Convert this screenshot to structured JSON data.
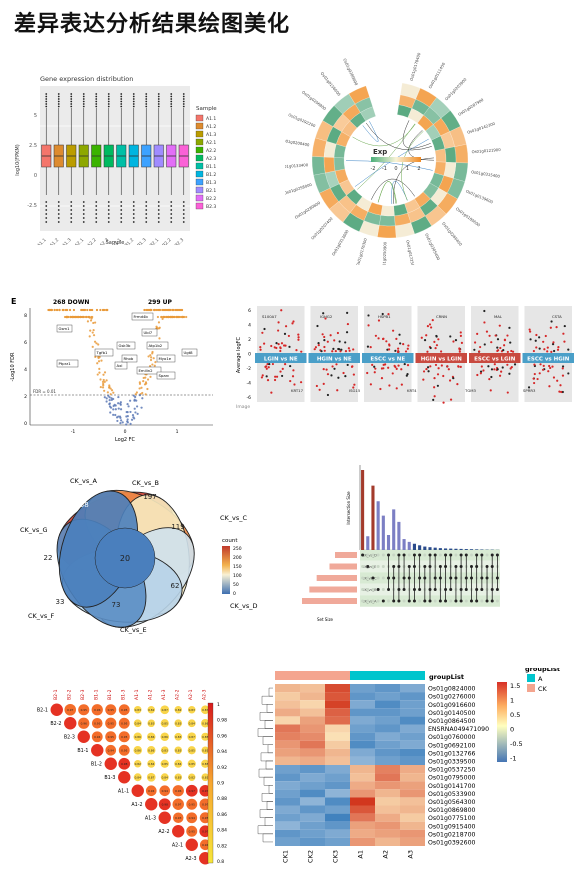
{
  "page": {
    "title": "差异表达分析结果绘图美化"
  },
  "boxplot": {
    "title": "Gene expression distribution",
    "xlabel": "Sample",
    "ylabel": "log10(FPKM)",
    "legend_title": "Sample",
    "samples": [
      "A1.1",
      "A1.2",
      "A1.3",
      "A2.1",
      "A2.2",
      "A2.3",
      "B1.1",
      "B1.2",
      "B1.3",
      "B2.1",
      "B2.2",
      "B2.3"
    ],
    "colors": [
      "#f4756b",
      "#dd8b2f",
      "#bb9c00",
      "#8da800",
      "#3bb300",
      "#00ba60",
      "#00bfa6",
      "#00b5e0",
      "#3da2ff",
      "#a08cff",
      "#e26ef7",
      "#fb61d7"
    ],
    "yticks": [
      "5",
      "2.5",
      "0",
      "-2.5"
    ]
  },
  "circos": {
    "legend_title": "Exp",
    "legend_ticks": [
      "-2",
      "-1",
      "0",
      "1",
      "2"
    ],
    "genes_right": [
      "Os01g0178400",
      "Os01g0111450",
      "Os01g0203900",
      "Os01g0287900",
      "Os01g0142300",
      "Os01g0121900",
      "Os01g0315400",
      "Os01g0139600",
      "Os01g0180500",
      "Os01g0266400",
      "Os01g0305400",
      "Os01g0172500"
    ],
    "genes_left": [
      "Os01g0250900",
      "Os01g0176300",
      "Os01g0313600",
      "Os01g0207400",
      "Os01g0280600",
      "Os01g0258000",
      "Os01g0133400",
      "Os01g0200400",
      "Os01g0292200",
      "Os01g0206800",
      "Os01g0156600",
      "Os01g0200600"
    ]
  },
  "volcano": {
    "panel_label": "E",
    "down_label": "268 DOWN",
    "up_label": "299 UP",
    "fdr_label": "FDR = 0.01",
    "xlabel": "Log2 FC",
    "ylabel": "-Log10 FDR",
    "xticks": [
      "-1",
      "0",
      "1"
    ],
    "yticks": [
      "0",
      "2",
      "4",
      "6",
      "8"
    ],
    "gene_labels": [
      "Gsm1",
      "Ptprz1",
      "Tgfb1",
      "Frmd4b",
      "Ubl7",
      "Gsk3b",
      "Atp1b2",
      "Axl",
      "Rhob",
      "Myo1e",
      "Emilin2",
      "Sparc",
      "Ugt8"
    ]
  },
  "multivolcano": {
    "ylabel": "Average logFC",
    "caption": "Image",
    "yticks": [
      "6",
      "4",
      "2",
      "0",
      "-2",
      "-4",
      "-6"
    ],
    "groups": [
      "LGIN vs NE",
      "HGIN vs NE",
      "ESCC vs NE",
      "HGIN vs LGIN",
      "ESCC vs LGIN",
      "ESCC vs HGIN"
    ],
    "group_colors": [
      "#4a9fc8",
      "#4a9fc8",
      "#4a9fc8",
      "#c84a40",
      "#c84a40",
      "#4a9fc8"
    ],
    "labels": [
      "S100A7",
      "KRT17",
      "IGHG2",
      "ISG15",
      "HSPB1",
      "KRT4",
      "CRNN",
      "TGM3",
      "MAL",
      "SPRR3",
      "CSTA"
    ]
  },
  "venn": {
    "sets": [
      "CK_vs_A",
      "CK_vs_B",
      "CK_vs_C",
      "CK_vs_D",
      "CK_vs_E",
      "CK_vs_F",
      "CK_vs_G"
    ],
    "unique_counts": [
      "258",
      "197",
      "119",
      "62",
      "73",
      "33",
      "22"
    ],
    "center_count": "20",
    "legend_title": "count",
    "legend_ticks": [
      "250",
      "200",
      "150",
      "100",
      "50",
      "0"
    ]
  },
  "upset": {
    "bar_ylabel": "Intersection Size",
    "set_xlabel": "Set Size",
    "sets": [
      "CK_vs_D",
      "CK_vs_E",
      "CK_vs_C",
      "CK_vs_B",
      "CK_vs_A"
    ],
    "set_sizes": [
      1200,
      1500,
      2200,
      2600,
      3000
    ],
    "intersections": [
      512,
      88,
      412,
      312,
      220,
      96,
      260,
      180,
      70,
      52,
      40,
      30,
      22,
      18,
      15,
      12,
      10,
      9,
      8,
      7,
      6,
      5,
      4,
      3,
      2,
      2,
      1
    ]
  },
  "corrplot": {
    "labels": [
      "B2-1",
      "B2-2",
      "B2-3",
      "B1-1",
      "B1-2",
      "B1-3",
      "A1-1",
      "A1-2",
      "A1-3",
      "A2-2",
      "A2-1",
      "A2-3"
    ],
    "scale_ticks": [
      "1",
      "0.98",
      "0.96",
      "0.94",
      "0.92",
      "0.9",
      "0.88",
      "0.86",
      "0.84",
      "0.82",
      "0.8"
    ]
  },
  "heatmap": {
    "columns": [
      "CK1",
      "CK2",
      "CK3",
      "A1",
      "A2",
      "A3"
    ],
    "rows": [
      "Os01g0824000",
      "Os01g0276000",
      "Os01g0916600",
      "Os01g0140500",
      "Os01g0864500",
      "ENSRNA049471090",
      "Os01g0760000",
      "Os01g0692100",
      "Os01g0132766",
      "Os01g0339500",
      "Os01g0537250",
      "Os01g0795000",
      "Os01g0141700",
      "Os01g0533900",
      "Os01g0564300",
      "Os01g0869800",
      "Os01g0775100",
      "Os01g0915400",
      "Os01g0218700",
      "Os01g0392600"
    ],
    "annotation_label": "groupList",
    "legend_title": "groupList",
    "groups": [
      {
        "name": "A",
        "color": "#00c5cd"
      },
      {
        "name": "CK",
        "color": "#f4a58f"
      }
    ],
    "scale_ticks": [
      "1.5",
      "1",
      "0.5",
      "0",
      "-0.5",
      "-1"
    ],
    "values": [
      [
        0.6,
        0.5,
        1.6,
        -0.8,
        -0.9,
        -0.7
      ],
      [
        0.4,
        0.6,
        1.5,
        -0.9,
        -0.8,
        -0.9
      ],
      [
        0.5,
        0.3,
        1.7,
        -0.7,
        -1.0,
        -0.8
      ],
      [
        0.7,
        0.5,
        1.4,
        -0.9,
        -0.9,
        -0.8
      ],
      [
        0.3,
        0.8,
        1.3,
        -0.7,
        -0.8,
        -1.0
      ],
      [
        1.2,
        0.9,
        0.3,
        -0.8,
        -0.9,
        -0.7
      ],
      [
        1.1,
        1.0,
        0.2,
        -0.9,
        -0.7,
        -0.8
      ],
      [
        0.9,
        1.2,
        0.4,
        -1.0,
        -0.8,
        -0.7
      ],
      [
        0.8,
        0.9,
        0.6,
        -0.7,
        -0.9,
        -1.0
      ],
      [
        0.6,
        0.7,
        0.5,
        -0.6,
        -0.8,
        -0.9
      ],
      [
        -0.8,
        -0.9,
        -0.7,
        0.6,
        1.1,
        0.7
      ],
      [
        -0.9,
        -0.7,
        -0.8,
        0.5,
        1.2,
        0.6
      ],
      [
        -0.7,
        -0.8,
        -0.9,
        0.7,
        0.9,
        0.8
      ],
      [
        -0.8,
        -1.0,
        -0.6,
        0.9,
        0.6,
        0.9
      ],
      [
        -0.9,
        -0.6,
        -1.0,
        1.8,
        0.4,
        0.5
      ],
      [
        -0.7,
        -0.9,
        -0.8,
        1.5,
        0.5,
        0.6
      ],
      [
        -0.8,
        -0.7,
        -1.1,
        1.2,
        0.7,
        0.4
      ],
      [
        -0.6,
        -0.8,
        -0.9,
        0.8,
        0.9,
        0.6
      ],
      [
        -0.9,
        -0.8,
        -0.7,
        0.7,
        0.8,
        0.9
      ],
      [
        -0.8,
        -0.9,
        -0.8,
        0.9,
        0.6,
        0.8
      ]
    ]
  }
}
